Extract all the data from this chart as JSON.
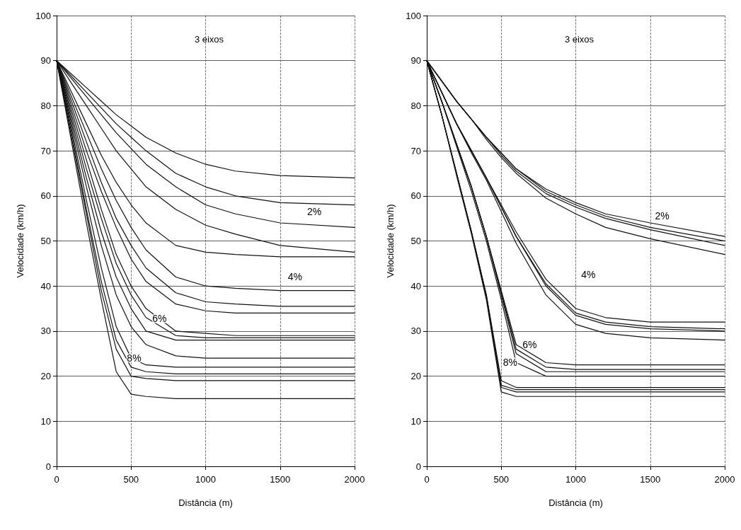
{
  "chart_data": [
    {
      "type": "line",
      "title": "3 eixos",
      "xlabel": "Distância (m)",
      "ylabel": "Velocidade (km/h)",
      "x": [
        0,
        100,
        200,
        300,
        400,
        500,
        600,
        800,
        1000,
        1200,
        1500,
        2000
      ],
      "xlim": [
        0,
        2000
      ],
      "xticks": [
        0,
        500,
        1000,
        1500,
        2000
      ],
      "ylim": [
        0,
        100
      ],
      "yticks": [
        0,
        10,
        20,
        30,
        40,
        50,
        60,
        70,
        80,
        90,
        100
      ],
      "grid": true,
      "marker": "none",
      "line_style": "solid",
      "annotations": [
        "2%",
        "4%",
        "6%",
        "8%"
      ],
      "series": [
        {
          "color": "#111111",
          "values": [
            90,
            87,
            84,
            81,
            78,
            75.5,
            73,
            69.5,
            67,
            65.5,
            64.5,
            64
          ]
        },
        {
          "color": "#111111",
          "values": [
            90,
            86.5,
            83,
            79.5,
            76,
            73,
            70,
            65,
            62,
            60,
            58.5,
            58
          ]
        },
        {
          "color": "#111111",
          "values": [
            90,
            86,
            82,
            78,
            74,
            70.5,
            67,
            62,
            58,
            56,
            54,
            53
          ]
        },
        {
          "color": "#111111",
          "values": [
            90,
            85,
            80,
            75,
            70,
            66,
            62,
            57,
            53.5,
            51.5,
            49,
            47.5
          ]
        },
        {
          "color": "#111111",
          "values": [
            90,
            83,
            76,
            69,
            63,
            58,
            54,
            49,
            47.5,
            47,
            46.5,
            46.5
          ]
        },
        {
          "color": "#111111",
          "values": [
            90,
            82,
            74,
            66,
            59,
            53,
            48,
            42,
            40,
            39.5,
            39,
            39
          ]
        },
        {
          "color": "#111111",
          "values": [
            90,
            81,
            72,
            63,
            55,
            49,
            44,
            38.5,
            36.5,
            36,
            35.5,
            35.5
          ]
        },
        {
          "color": "#111111",
          "values": [
            90,
            80,
            70,
            61,
            53,
            46,
            41,
            36,
            34.5,
            34,
            34,
            34
          ]
        },
        {
          "color": "#111111",
          "values": [
            90,
            79,
            68,
            57,
            47,
            40,
            35,
            30,
            29.5,
            29,
            29,
            29
          ]
        },
        {
          "color": "#111111",
          "values": [
            90,
            78,
            66,
            55,
            45,
            38,
            33,
            29,
            28.5,
            28.5,
            28.5,
            28.5
          ]
        },
        {
          "color": "#111111",
          "values": [
            90,
            77,
            64,
            52,
            42,
            35,
            30,
            28,
            28,
            28,
            28,
            28
          ]
        },
        {
          "color": "#111111",
          "values": [
            90,
            76,
            62,
            49,
            38,
            31,
            27,
            24.5,
            24,
            24,
            24,
            24
          ]
        },
        {
          "color": "#111111",
          "values": [
            90,
            75,
            59,
            44,
            31,
            24,
            22.5,
            22,
            22,
            22,
            22,
            22
          ]
        },
        {
          "color": "#111111",
          "values": [
            90,
            74,
            57,
            41,
            28,
            22,
            21,
            20.5,
            20.5,
            20.5,
            20.5,
            20.5
          ]
        },
        {
          "color": "#111111",
          "values": [
            90,
            73,
            56,
            39,
            26,
            20,
            19.5,
            19,
            19,
            19,
            19,
            19
          ]
        },
        {
          "color": "#111111",
          "values": [
            90,
            72,
            54,
            37,
            21,
            16,
            15.5,
            15,
            15,
            15,
            15,
            15
          ]
        }
      ]
    },
    {
      "type": "line",
      "title": "3 eixos",
      "xlabel": "Distância (m)",
      "ylabel": "Velocidade (km/h)",
      "x": [
        0,
        100,
        200,
        300,
        400,
        500,
        600,
        800,
        1000,
        1200,
        1500,
        2000
      ],
      "xlim": [
        0,
        2000
      ],
      "xticks": [
        0,
        500,
        1000,
        1500,
        2000
      ],
      "ylim": [
        0,
        100
      ],
      "yticks": [
        0,
        10,
        20,
        30,
        40,
        50,
        60,
        70,
        80,
        90,
        100
      ],
      "grid": true,
      "marker": "none",
      "line_style": "solid",
      "annotations": [
        "2%",
        "4%",
        "6%",
        "8%"
      ],
      "series": [
        {
          "color": "#111111",
          "values": [
            90,
            85.5,
            81,
            77,
            73,
            69.5,
            66,
            61.5,
            58.5,
            56,
            54,
            51
          ]
        },
        {
          "color": "#111111",
          "values": [
            90,
            85.5,
            81,
            77,
            73,
            69.5,
            66,
            61,
            58,
            55.5,
            53,
            50
          ]
        },
        {
          "color": "#111111",
          "values": [
            90,
            85.5,
            81,
            77,
            73,
            69,
            65.5,
            60.5,
            57.5,
            55,
            52.5,
            49
          ]
        },
        {
          "color": "#111111",
          "values": [
            90,
            85.5,
            81,
            77,
            72.5,
            68.5,
            65,
            59.5,
            56,
            53,
            50.5,
            47
          ]
        },
        {
          "color": "#111111",
          "values": [
            90,
            83,
            76,
            70,
            64,
            58,
            52,
            41.5,
            35,
            33,
            32,
            32
          ]
        },
        {
          "color": "#111111",
          "values": [
            90,
            83,
            76,
            70,
            64,
            57.5,
            51,
            40.5,
            34,
            32,
            31,
            30.5
          ]
        },
        {
          "color": "#111111",
          "values": [
            90,
            83,
            76,
            70,
            64,
            57.5,
            51,
            40,
            33.5,
            31.5,
            30.5,
            30
          ]
        },
        {
          "color": "#111111",
          "values": [
            90,
            83,
            76,
            69.5,
            63.5,
            56.5,
            49.5,
            38,
            31.5,
            29.5,
            28.5,
            28
          ]
        },
        {
          "color": "#111111",
          "values": [
            90,
            81,
            71.5,
            62,
            51,
            39,
            27,
            23,
            22.5,
            22.5,
            22.5,
            22.5
          ]
        },
        {
          "color": "#111111",
          "values": [
            90,
            81,
            71.5,
            62,
            51,
            38.5,
            26,
            22,
            21.5,
            21.5,
            21.5,
            21.5
          ]
        },
        {
          "color": "#111111",
          "values": [
            90,
            81,
            71.5,
            62,
            51,
            38,
            25,
            21,
            21,
            21,
            21,
            21
          ]
        },
        {
          "color": "#111111",
          "values": [
            90,
            81,
            71,
            61,
            50,
            37,
            23,
            20,
            20,
            20,
            20,
            20
          ]
        },
        {
          "color": "#111111",
          "values": [
            90,
            78,
            65,
            52,
            38,
            19,
            17.5,
            17.5,
            17.5,
            17.5,
            17.5,
            17.5
          ]
        },
        {
          "color": "#111111",
          "values": [
            90,
            78,
            65,
            52,
            38,
            18,
            17,
            17,
            17,
            17,
            17,
            17
          ]
        },
        {
          "color": "#111111",
          "values": [
            90,
            78,
            65,
            52,
            37.5,
            17.5,
            16.5,
            16.5,
            16.5,
            16.5,
            16.5,
            16.5
          ]
        },
        {
          "color": "#111111",
          "values": [
            90,
            78,
            64.5,
            51.5,
            37,
            16.5,
            15.5,
            15.5,
            15.5,
            15.5,
            15.5,
            15.5
          ]
        }
      ]
    }
  ]
}
